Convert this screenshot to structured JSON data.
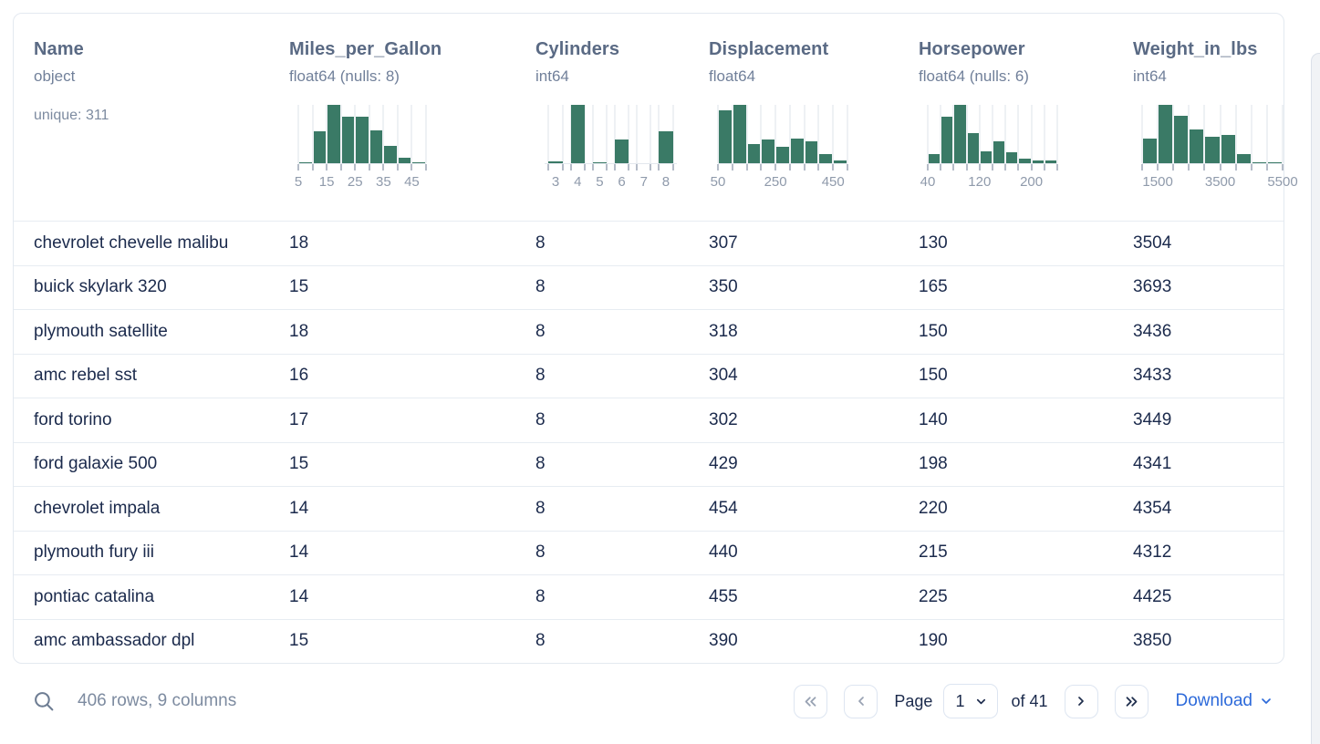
{
  "card": {
    "columns": [
      {
        "name": "Name",
        "type": "object",
        "unique": "unique: 311",
        "histogram": null
      },
      {
        "name": "Miles_per_Gallon",
        "type": "float64 (nulls: 8)",
        "histogram": {
          "style": "bins",
          "width": 140,
          "values": [
            2,
            55,
            100,
            80,
            80,
            57,
            30,
            10,
            2
          ],
          "labels": [
            {
              "t": "5",
              "f": 0
            },
            {
              "t": "15",
              "f": 0.2222
            },
            {
              "t": "25",
              "f": 0.4444
            },
            {
              "t": "35",
              "f": 0.6667
            },
            {
              "t": "45",
              "f": 0.8889
            }
          ]
        }
      },
      {
        "name": "Cylinders",
        "type": "int64",
        "histogram": {
          "style": "slots",
          "width": 145,
          "values": [
            3,
            100,
            2,
            40,
            0,
            55
          ],
          "labels": [
            {
              "t": "3",
              "f": 0.0833
            },
            {
              "t": "4",
              "f": 0.25
            },
            {
              "t": "5",
              "f": 0.4167
            },
            {
              "t": "6",
              "f": 0.5833
            },
            {
              "t": "7",
              "f": 0.75
            },
            {
              "t": "8",
              "f": 0.9167
            }
          ]
        }
      },
      {
        "name": "Displacement",
        "type": "float64",
        "histogram": {
          "style": "bins",
          "width": 142,
          "values": [
            90,
            100,
            33,
            40,
            28,
            42,
            37,
            16,
            4
          ],
          "labels": [
            {
              "t": "50",
              "f": 0
            },
            {
              "t": "250",
              "f": 0.4444
            },
            {
              "t": "450",
              "f": 0.8889
            }
          ]
        }
      },
      {
        "name": "Horsepower",
        "type": "float64 (nulls: 6)",
        "histogram": {
          "style": "bins",
          "width": 142,
          "values": [
            15,
            80,
            100,
            52,
            20,
            38,
            18,
            8,
            5,
            4
          ],
          "labels": [
            {
              "t": "40",
              "f": 0
            },
            {
              "t": "120",
              "f": 0.4
            },
            {
              "t": "200",
              "f": 0.8
            }
          ]
        }
      },
      {
        "name": "Weight_in_lbs",
        "type": "int64",
        "histogram": {
          "style": "bins",
          "width": 154,
          "values": [
            42,
            100,
            82,
            58,
            45,
            48,
            15,
            2,
            1
          ],
          "labels": [
            {
              "t": "1500",
              "f": 0.1111
            },
            {
              "t": "3500",
              "f": 0.5556
            },
            {
              "t": "5500",
              "f": 1
            }
          ]
        }
      }
    ],
    "rows": [
      [
        "chevrolet chevelle malibu",
        "18",
        "8",
        "307",
        "130",
        "3504"
      ],
      [
        "buick skylark 320",
        "15",
        "8",
        "350",
        "165",
        "3693"
      ],
      [
        "plymouth satellite",
        "18",
        "8",
        "318",
        "150",
        "3436"
      ],
      [
        "amc rebel sst",
        "16",
        "8",
        "304",
        "150",
        "3433"
      ],
      [
        "ford torino",
        "17",
        "8",
        "302",
        "140",
        "3449"
      ],
      [
        "ford galaxie 500",
        "15",
        "8",
        "429",
        "198",
        "4341"
      ],
      [
        "chevrolet impala",
        "14",
        "8",
        "454",
        "220",
        "4354"
      ],
      [
        "plymouth fury iii",
        "14",
        "8",
        "440",
        "215",
        "4312"
      ],
      [
        "pontiac catalina",
        "14",
        "8",
        "455",
        "225",
        "4425"
      ],
      [
        "amc ambassador dpl",
        "15",
        "8",
        "390",
        "190",
        "3850"
      ]
    ]
  },
  "footer": {
    "summary": "406 rows, 9 columns",
    "page_label": "Page",
    "page_value": "1",
    "of_label": "of 41",
    "download_label": "Download"
  },
  "colors": {
    "histogram_bar": "#3a7a66",
    "accent_blue": "#2d6ada",
    "row_text": "#1b2a4c",
    "header_text": "#5a6a84"
  }
}
